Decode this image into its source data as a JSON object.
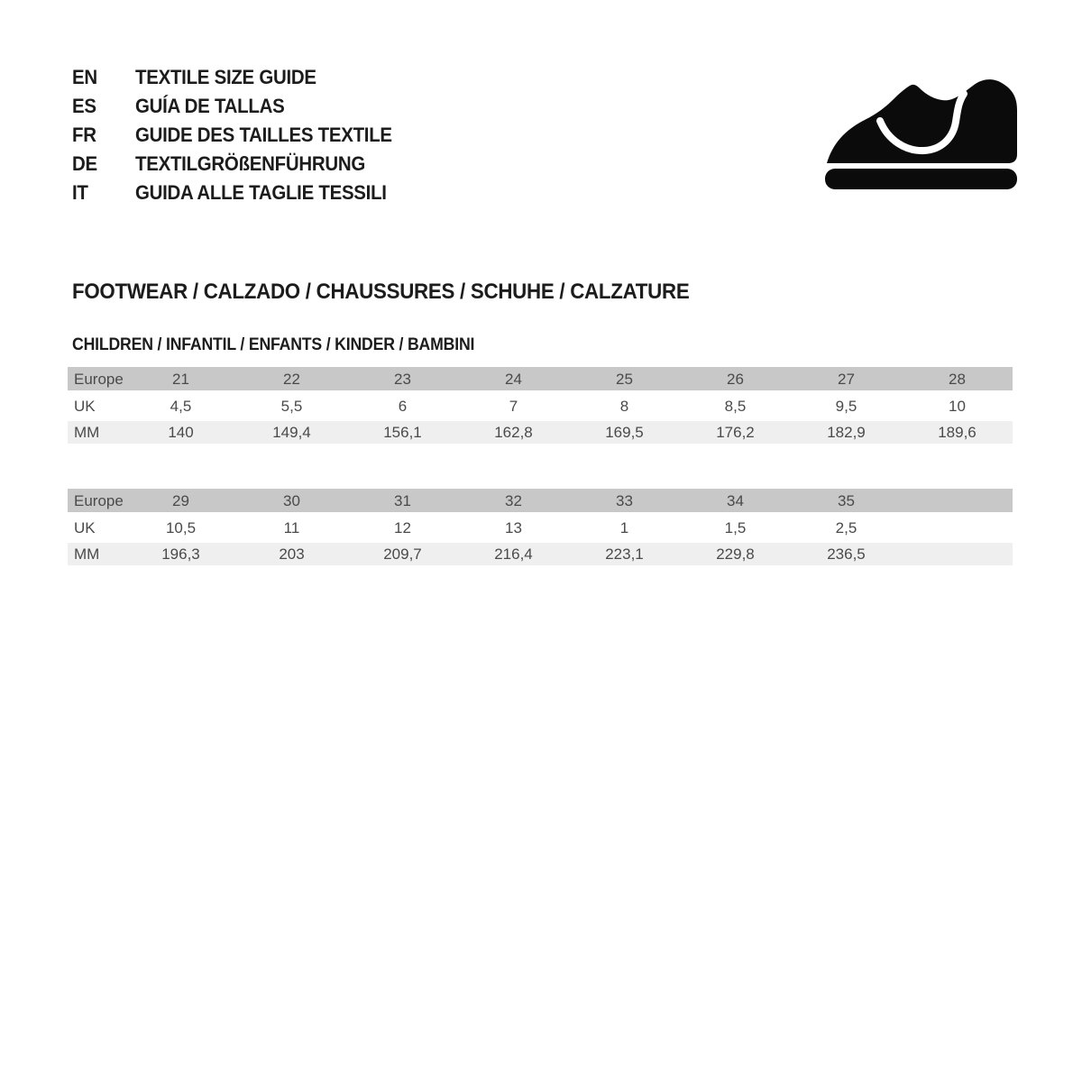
{
  "languages": [
    {
      "code": "EN",
      "title": "TEXTILE SIZE GUIDE"
    },
    {
      "code": "ES",
      "title": "GUÍA DE TALLAS"
    },
    {
      "code": "FR",
      "title": "GUIDE DES TAILLES TEXTILE"
    },
    {
      "code": "DE",
      "title": "TEXTILGRÖßENFÜHRUNG"
    },
    {
      "code": "IT",
      "title": "GUIDA ALLE TAGLIE TESSILI"
    }
  ],
  "icon": {
    "name": "children-shoe-icon",
    "color": "#0b0b0b"
  },
  "section": {
    "title": "FOOTWEAR / CALZADO / CHAUSSURES / SCHUHE / CALZATURE"
  },
  "subsection": {
    "title": "CHILDREN / INFANTIL / ENFANTS / KINDER / BAMBINI"
  },
  "colors": {
    "header_row_bg": "#c8c8c8",
    "mm_row_bg": "#efefef",
    "table_text": "#4a4a4a",
    "heading_text": "#1c1c1c",
    "background": "#ffffff"
  },
  "tables": [
    {
      "name": "children-sizes-21-28",
      "rows": [
        {
          "label": "Europe",
          "values": [
            "21",
            "22",
            "23",
            "24",
            "25",
            "26",
            "27",
            "28"
          ]
        },
        {
          "label": "UK",
          "values": [
            "4,5",
            "5,5",
            "6",
            "7",
            "8",
            "8,5",
            "9,5",
            "10"
          ]
        },
        {
          "label": "MM",
          "values": [
            "140",
            "149,4",
            "156,1",
            "162,8",
            "169,5",
            "176,2",
            "182,9",
            "189,6"
          ]
        }
      ]
    },
    {
      "name": "children-sizes-29-35",
      "rows": [
        {
          "label": "Europe",
          "values": [
            "29",
            "30",
            "31",
            "32",
            "33",
            "34",
            "35",
            ""
          ]
        },
        {
          "label": "UK",
          "values": [
            "10,5",
            "11",
            "12",
            "13",
            "1",
            "1,5",
            "2,5",
            ""
          ]
        },
        {
          "label": "MM",
          "values": [
            "196,3",
            "203",
            "209,7",
            "216,4",
            "223,1",
            "229,8",
            "236,5",
            ""
          ]
        }
      ]
    }
  ]
}
